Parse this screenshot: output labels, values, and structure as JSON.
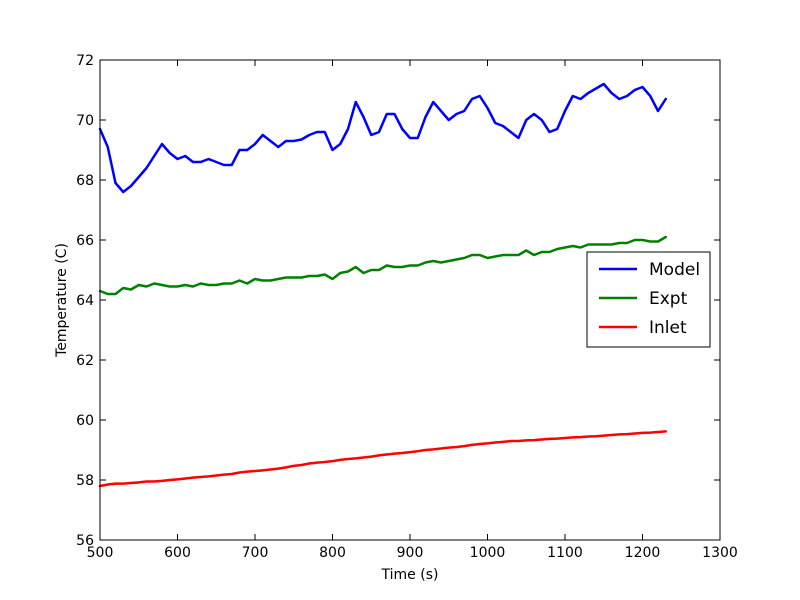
{
  "chart_data": {
    "type": "line",
    "title": "",
    "xlabel": "Time (s)",
    "ylabel": "Temperature (C)",
    "xlim": [
      500,
      1300
    ],
    "ylim": [
      56,
      72
    ],
    "xticks": [
      500,
      600,
      700,
      800,
      900,
      1000,
      1100,
      1200,
      1300
    ],
    "yticks": [
      56,
      58,
      60,
      62,
      64,
      66,
      68,
      70,
      72
    ],
    "grid": false,
    "legend_position": "center-right",
    "x": [
      500,
      510,
      520,
      530,
      540,
      550,
      560,
      570,
      580,
      590,
      600,
      610,
      620,
      630,
      640,
      650,
      660,
      670,
      680,
      690,
      700,
      710,
      720,
      730,
      740,
      750,
      760,
      770,
      780,
      790,
      800,
      810,
      820,
      830,
      840,
      850,
      860,
      870,
      880,
      890,
      900,
      910,
      920,
      930,
      940,
      950,
      960,
      970,
      980,
      990,
      1000,
      1010,
      1020,
      1030,
      1040,
      1050,
      1060,
      1070,
      1080,
      1090,
      1100,
      1110,
      1120,
      1130,
      1140,
      1150,
      1160,
      1170,
      1180,
      1190,
      1200,
      1210,
      1220,
      1230
    ],
    "series": [
      {
        "name": "Model",
        "color": "#0000ff",
        "values": [
          69.7,
          69.1,
          67.9,
          67.6,
          67.8,
          68.1,
          68.4,
          68.8,
          69.2,
          68.9,
          68.7,
          68.8,
          68.6,
          68.6,
          68.7,
          68.6,
          68.5,
          68.5,
          69.0,
          69.0,
          69.2,
          69.5,
          69.3,
          69.1,
          69.3,
          69.3,
          69.35,
          69.5,
          69.6,
          69.6,
          69.0,
          69.2,
          69.7,
          70.6,
          70.1,
          69.5,
          69.6,
          70.2,
          70.2,
          69.7,
          69.4,
          69.4,
          70.1,
          70.6,
          70.3,
          70.0,
          70.2,
          70.3,
          70.7,
          70.8,
          70.4,
          69.9,
          69.8,
          69.6,
          69.4,
          70.0,
          70.2,
          70.0,
          69.6,
          69.7,
          70.3,
          70.8,
          70.7,
          70.9,
          71.05,
          71.2,
          70.9,
          70.7,
          70.8,
          71.0,
          71.1,
          70.8,
          70.3,
          70.7
        ]
      },
      {
        "name": "Expt",
        "color": "#008000",
        "values": [
          64.3,
          64.2,
          64.2,
          64.4,
          64.35,
          64.5,
          64.45,
          64.55,
          64.5,
          64.45,
          64.45,
          64.5,
          64.45,
          64.55,
          64.5,
          64.5,
          64.55,
          64.55,
          64.65,
          64.55,
          64.7,
          64.65,
          64.65,
          64.7,
          64.75,
          64.75,
          64.75,
          64.8,
          64.8,
          64.85,
          64.7,
          64.9,
          64.95,
          65.1,
          64.9,
          65.0,
          65.0,
          65.15,
          65.1,
          65.1,
          65.15,
          65.15,
          65.25,
          65.3,
          65.25,
          65.3,
          65.35,
          65.4,
          65.5,
          65.5,
          65.4,
          65.45,
          65.5,
          65.5,
          65.5,
          65.65,
          65.5,
          65.6,
          65.6,
          65.7,
          65.75,
          65.8,
          65.75,
          65.85,
          65.85,
          65.85,
          65.85,
          65.9,
          65.9,
          66.0,
          66.0,
          65.95,
          65.95,
          66.1
        ]
      },
      {
        "name": "Inlet",
        "color": "#ff0000",
        "values": [
          57.8,
          57.85,
          57.88,
          57.88,
          57.9,
          57.92,
          57.95,
          57.95,
          57.97,
          58.0,
          58.02,
          58.05,
          58.08,
          58.1,
          58.12,
          58.15,
          58.18,
          58.2,
          58.25,
          58.28,
          58.3,
          58.32,
          58.35,
          58.38,
          58.42,
          58.47,
          58.5,
          58.55,
          58.58,
          58.6,
          58.63,
          58.67,
          58.7,
          58.72,
          58.75,
          58.78,
          58.82,
          58.85,
          58.88,
          58.9,
          58.93,
          58.96,
          59.0,
          59.02,
          59.05,
          59.08,
          59.1,
          59.13,
          59.17,
          59.2,
          59.22,
          59.25,
          59.27,
          59.3,
          59.3,
          59.32,
          59.33,
          59.35,
          59.37,
          59.38,
          59.4,
          59.42,
          59.43,
          59.45,
          59.46,
          59.48,
          59.5,
          59.52,
          59.53,
          59.55,
          59.57,
          59.58,
          59.6,
          59.62
        ]
      }
    ]
  }
}
